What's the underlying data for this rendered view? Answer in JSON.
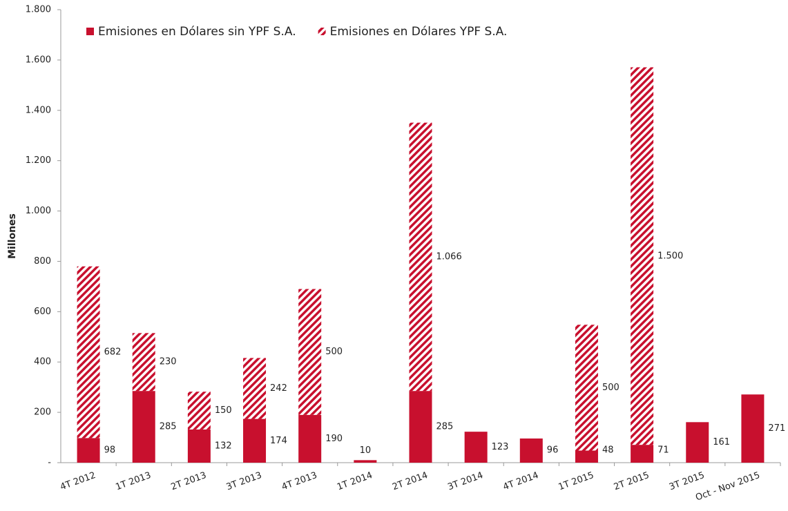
{
  "chart_data": {
    "type": "stacked-bar",
    "y_label": "Millones",
    "categories": [
      "4T 2012",
      "1T 2013",
      "2T 2013",
      "3T 2013",
      "4T 2013",
      "1T 2014",
      "2T 2014",
      "3T 2014",
      "4T 2014",
      "1T 2015",
      "2T 2015",
      "3T 2015",
      "Oct - Nov 2015"
    ],
    "series": [
      {
        "name": "Emisiones en Dólares sin YPF S.A.",
        "color": "#c8102e",
        "pattern": "solid",
        "values": [
          98,
          285,
          132,
          174,
          190,
          10,
          285,
          123,
          96,
          48,
          71,
          161,
          271
        ]
      },
      {
        "name": "Emisiones en Dólares YPF S.A.",
        "color": "#c8102e",
        "pattern": "hatch",
        "values": [
          682,
          230,
          150,
          242,
          500,
          null,
          1066,
          null,
          null,
          500,
          1500,
          null,
          null
        ],
        "value_labels": [
          "682",
          "230",
          "150",
          "242",
          "500",
          null,
          "1.066",
          null,
          null,
          "500",
          "1.500",
          null,
          null
        ]
      }
    ],
    "ylim": [
      0,
      1800
    ],
    "yticks": [
      {
        "value": 0,
        "label": "-"
      },
      200,
      400,
      600,
      800,
      {
        "value": 1000,
        "label": "1.000"
      },
      {
        "value": 1200,
        "label": "1.200"
      },
      {
        "value": 1400,
        "label": "1.400"
      },
      {
        "value": 1600,
        "label": "1.600"
      },
      {
        "value": 1800,
        "label": "1.800"
      }
    ],
    "legend": "top-left"
  }
}
